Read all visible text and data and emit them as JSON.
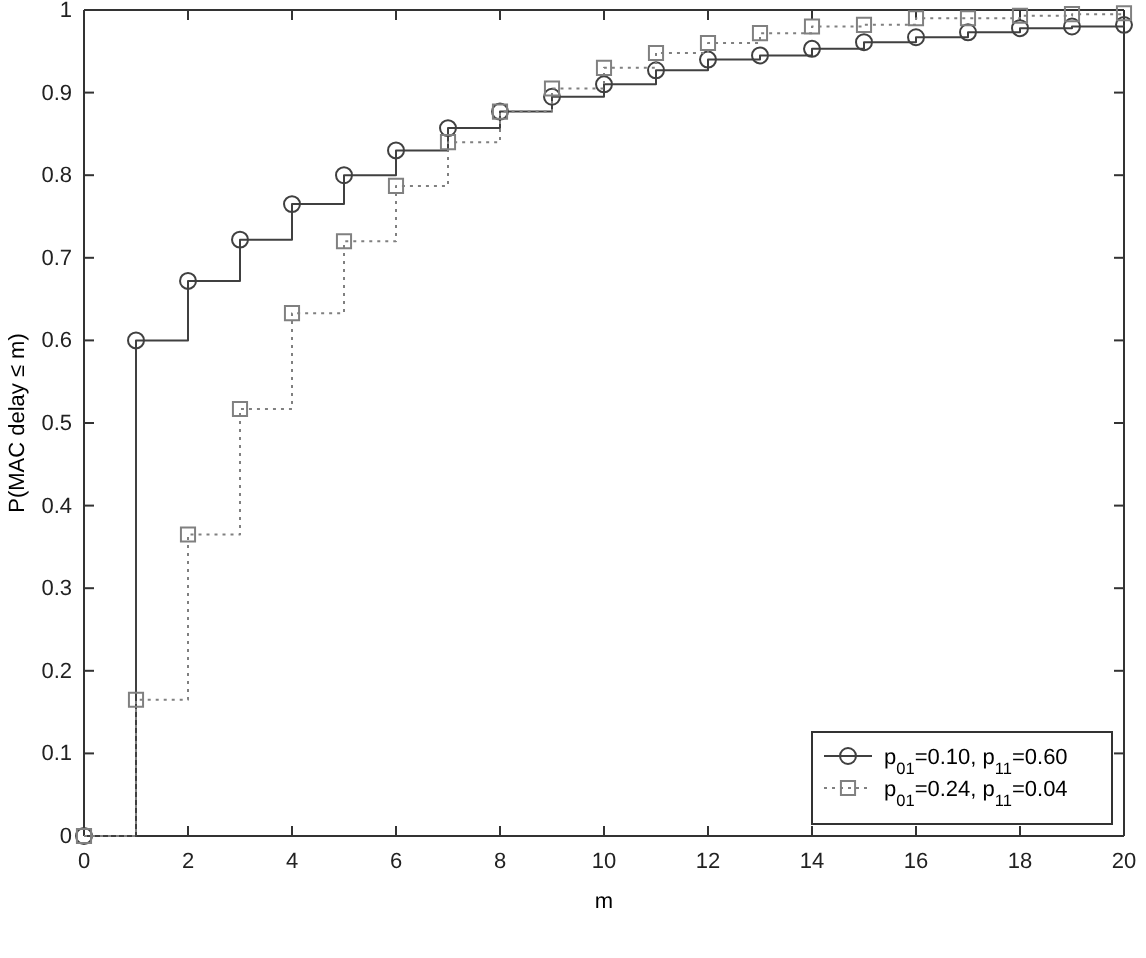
{
  "chart_data": {
    "type": "step",
    "xlabel": "m",
    "ylabel": "P(MAC delay ≤ m)",
    "x": [
      0,
      1,
      2,
      3,
      4,
      5,
      6,
      7,
      8,
      9,
      10,
      11,
      12,
      13,
      14,
      15,
      16,
      17,
      18,
      19,
      20
    ],
    "series": [
      {
        "name": "p$_{01}$=0.10, p$_{11}$=0.60",
        "color": "#404040",
        "marker": "circle",
        "line_style": "solid",
        "values": [
          0,
          0.6,
          0.672,
          0.722,
          0.765,
          0.8,
          0.83,
          0.857,
          0.877,
          0.895,
          0.91,
          0.927,
          0.94,
          0.945,
          0.953,
          0.961,
          0.967,
          0.973,
          0.978,
          0.98,
          0.982
        ]
      },
      {
        "name": "p$_{01}$=0.24, p$_{11}$=0.04",
        "color": "#808080",
        "marker": "square",
        "line_style": "dotted",
        "values": [
          0,
          0.165,
          0.365,
          0.517,
          0.633,
          0.72,
          0.787,
          0.84,
          0.877,
          0.905,
          0.93,
          0.948,
          0.96,
          0.972,
          0.98,
          0.982,
          0.99,
          0.99,
          0.993,
          0.995,
          0.996
        ]
      }
    ],
    "xlim": [
      0,
      20
    ],
    "xticks": [
      0,
      2,
      4,
      6,
      8,
      10,
      12,
      14,
      16,
      18,
      20
    ],
    "ylim": [
      0,
      1
    ],
    "yticks": [
      0,
      0.1,
      0.2,
      0.3,
      0.4,
      0.5,
      0.6,
      0.7,
      0.8,
      0.9,
      1
    ],
    "grid": false,
    "legend": "bottom right"
  }
}
